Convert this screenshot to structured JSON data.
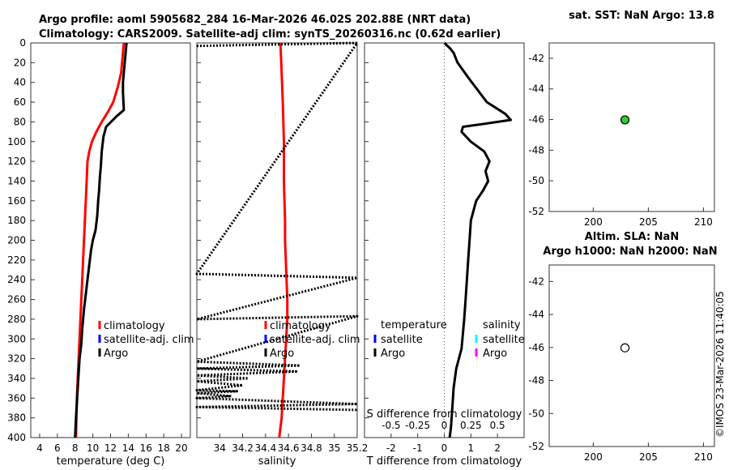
{
  "header": {
    "line1": "Argo profile: aoml 5905682_284 16-Mar-2026 46.02S 202.88E (NRT data)",
    "line2": "Climatology: CARS2009. Satellite-adj clim: synTS_20260316.nc (0.62d earlier)"
  },
  "footer": {
    "stamp": "©IMOS 23-Mar-2026 11:40:05"
  },
  "colors": {
    "climatology": "#ff0000",
    "satellite": "#0000ff",
    "argo": "#000000",
    "cyan": "#00ffff",
    "magenta": "#ff00ff",
    "marker_green": "#33cc33"
  },
  "chart_data": [
    {
      "type": "line",
      "xlabel": "temperature (deg C)",
      "ylabel": "",
      "xlim": [
        3,
        21
      ],
      "ylim": [
        400,
        0
      ],
      "xticks": [
        "4",
        "6",
        "8",
        "10",
        "12",
        "14",
        "16",
        "18",
        "20"
      ],
      "yticks": [
        "0",
        "20",
        "40",
        "60",
        "80",
        "100",
        "120",
        "140",
        "160",
        "180",
        "200",
        "220",
        "240",
        "260",
        "280",
        "300",
        "320",
        "340",
        "360",
        "380",
        "400"
      ],
      "legend": [
        "climatology",
        "satellite-adj. clim",
        "Argo"
      ],
      "series": [
        {
          "name": "climatology",
          "x": [
            13.5,
            13.4,
            13.2,
            12.8,
            12.3,
            11.7,
            11.0,
            10.4,
            9.9,
            9.6,
            9.4,
            9.3,
            9.2,
            9.1,
            9.0,
            8.9,
            8.8,
            8.7,
            8.6,
            8.5,
            8.4,
            8.3,
            8.2,
            8.1
          ],
          "y": [
            0,
            10,
            30,
            45,
            60,
            70,
            80,
            90,
            100,
            110,
            120,
            140,
            160,
            180,
            200,
            220,
            240,
            260,
            280,
            300,
            320,
            340,
            360,
            400
          ]
        },
        {
          "name": "Argo",
          "x": [
            13.8,
            13.7,
            13.6,
            13.5,
            13.4,
            13.4,
            13.5,
            12.6,
            11.5,
            11.2,
            11.0,
            10.9,
            10.8,
            10.7,
            10.6,
            10.5,
            10.3,
            10.0,
            9.8,
            9.6,
            9.4,
            9.2,
            9.0,
            8.8,
            8.7,
            8.5,
            8.4,
            8.3,
            8.2,
            8.1,
            8.0
          ],
          "y": [
            0,
            10,
            20,
            30,
            40,
            50,
            68,
            75,
            85,
            95,
            110,
            125,
            135,
            150,
            160,
            175,
            190,
            200,
            210,
            225,
            240,
            255,
            270,
            290,
            305,
            320,
            335,
            350,
            365,
            380,
            400
          ]
        }
      ]
    },
    {
      "type": "line",
      "xlabel": "salinity",
      "ylabel": "",
      "xlim": [
        33.8,
        35.2
      ],
      "ylim": [
        400,
        0
      ],
      "xticks": [
        "34",
        "34.2",
        "34.4",
        "34.6",
        "34.8",
        "35",
        "35.2"
      ],
      "legend": [
        "climatology",
        "satellite-adj. clim",
        "Argo"
      ],
      "series": [
        {
          "name": "climatology",
          "x": [
            34.53,
            34.54,
            34.55,
            34.56,
            34.56,
            34.57,
            34.57,
            34.58,
            34.59,
            34.59,
            34.58,
            34.57,
            34.56,
            34.55,
            34.54,
            34.53,
            34.52
          ],
          "y": [
            0,
            30,
            60,
            100,
            140,
            180,
            200,
            230,
            260,
            280,
            300,
            320,
            340,
            360,
            380,
            390,
            400
          ]
        },
        {
          "name": "Argo",
          "x": [
            33.8,
            35.2,
            33.8,
            35.2,
            33.8,
            35.2,
            33.8,
            34.7,
            33.8,
            34.68,
            33.8,
            34.25,
            33.8,
            34.2,
            33.8,
            34.15,
            33.8,
            34.1,
            33.8,
            35.2,
            33.8,
            35.2
          ],
          "y": [
            3,
            0,
            234,
            238,
            280,
            277,
            323,
            327,
            330,
            333,
            337,
            340,
            343,
            347,
            352,
            353,
            355,
            358,
            360,
            366,
            369,
            372
          ]
        }
      ]
    },
    {
      "type": "line",
      "xlabel": "T difference from climatology",
      "xlabel2": "S difference from climatology",
      "xlim": [
        -3,
        3
      ],
      "ylim": [
        400,
        0
      ],
      "xticks": [
        "-2",
        "-1",
        "0",
        "1",
        "2"
      ],
      "xticks2": [
        "-0.5",
        "-0.25",
        "0",
        "0.25",
        "0.5"
      ],
      "legend": {
        "temperature": [
          "satellite",
          "Argo"
        ],
        "salinity": [
          "satellite",
          "Argo"
        ]
      },
      "legend_titles": [
        "temperature",
        "salinity"
      ],
      "series": [
        {
          "name": "Argo",
          "x": [
            0,
            0.2,
            0.35,
            0.5,
            0.9,
            1.6,
            2.3,
            2.5,
            1.5,
            0.7,
            0.65,
            1.0,
            1.5,
            1.7,
            1.55,
            1.65,
            1.45,
            1.2,
            1.0,
            0.95,
            0.9,
            0.85,
            0.8,
            0.75,
            0.65,
            0.45,
            0.35,
            0.3,
            0.25,
            0.2
          ],
          "y": [
            0,
            5,
            10,
            20,
            35,
            60,
            72,
            78,
            82,
            85,
            90,
            100,
            110,
            120,
            130,
            140,
            150,
            160,
            180,
            200,
            220,
            240,
            260,
            280,
            310,
            330,
            350,
            370,
            390,
            400
          ]
        }
      ]
    },
    {
      "type": "scatter",
      "title": "sat. SST: NaN Argo: 13.8",
      "xlim": [
        196,
        211
      ],
      "ylim": [
        -52,
        -41
      ],
      "xticks": [
        "200",
        "205",
        "210"
      ],
      "yticks": [
        "-42",
        "-44",
        "-46",
        "-48",
        "-50",
        "-52"
      ],
      "points": [
        {
          "x": 202.88,
          "y": -46.02
        }
      ]
    },
    {
      "type": "scatter",
      "title": "Altim. SLA: NaN",
      "title2": "Argo h1000: NaN h2000: NaN",
      "xlim": [
        196,
        211
      ],
      "ylim": [
        -52,
        -41
      ],
      "xticks": [
        "200",
        "205",
        "210"
      ],
      "yticks": [
        "-42",
        "-44",
        "-46",
        "-48",
        "-50",
        "-52"
      ],
      "points": [
        {
          "x": 202.88,
          "y": -46.02
        }
      ]
    }
  ]
}
